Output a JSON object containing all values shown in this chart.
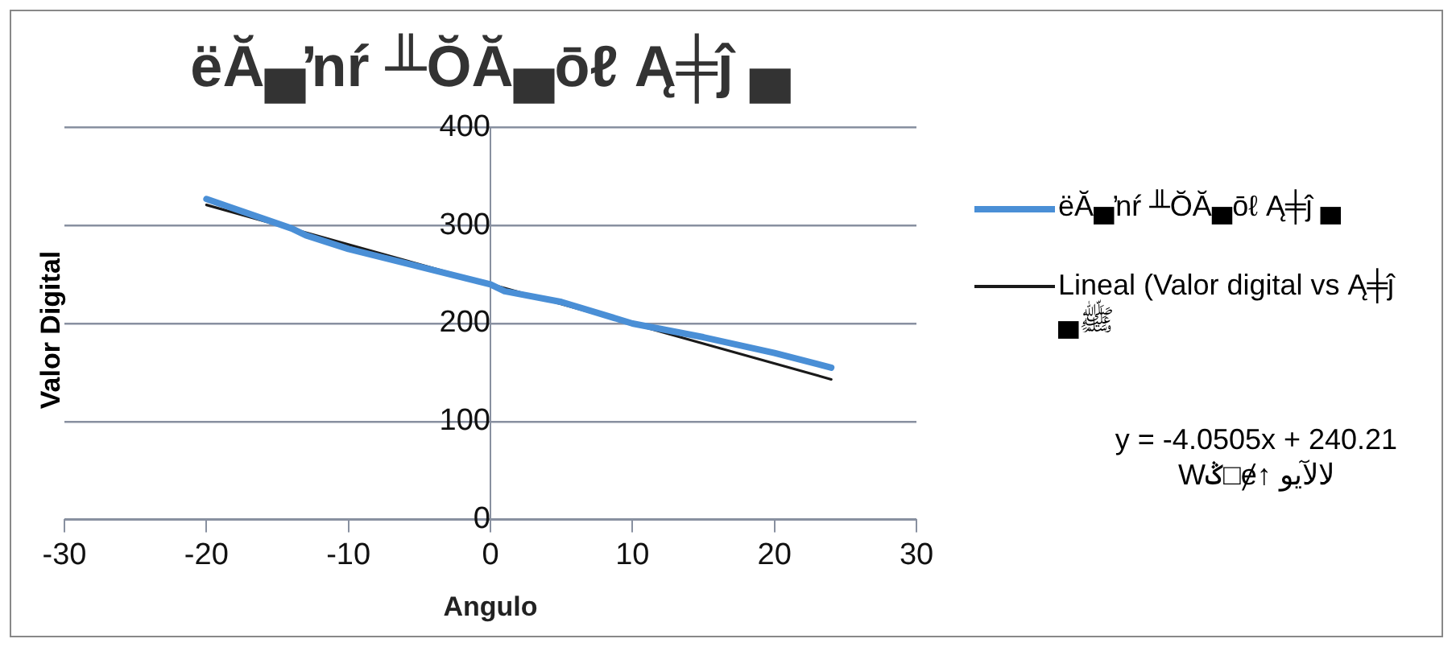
{
  "chart_data": {
    "type": "line",
    "title": "ëĂ▄ŉŕ ╨ŎĂ▄ōℓ Ą╪ĵ ▄",
    "xlabel": "Angulo",
    "ylabel": "Valor Digital",
    "xlim": [
      -30,
      30
    ],
    "xticks": [
      -30,
      -20,
      -10,
      0,
      10,
      20,
      30
    ],
    "ylim": [
      0,
      400
    ],
    "yticks": [
      0,
      100,
      200,
      300,
      400
    ],
    "grid": "y",
    "legend": "right",
    "marker": "none",
    "series": [
      {
        "name": "ëĂ▄ŉŕ ╨ŎĂ▄ōℓ Ą╪ĵ ▄",
        "color": "#4a8fd6",
        "x": [
          -20,
          -14,
          -13,
          -10,
          -5,
          0,
          1,
          5,
          10,
          15,
          20,
          24
        ],
        "values": [
          327,
          297,
          290,
          276,
          258,
          240,
          233,
          222,
          200,
          186,
          170,
          155
        ]
      },
      {
        "name": "Lineal (Valor digital vs Ą╪ĵ ▄ﷺ",
        "color": "#1a1a1a",
        "x": [
          -20,
          24
        ],
        "values": [
          321,
          143
        ]
      }
    ],
    "annotations": [
      "y = -4.0505x + 240.21",
      "Wݣ□ɇ↑ ﻻﻵيو"
    ]
  }
}
